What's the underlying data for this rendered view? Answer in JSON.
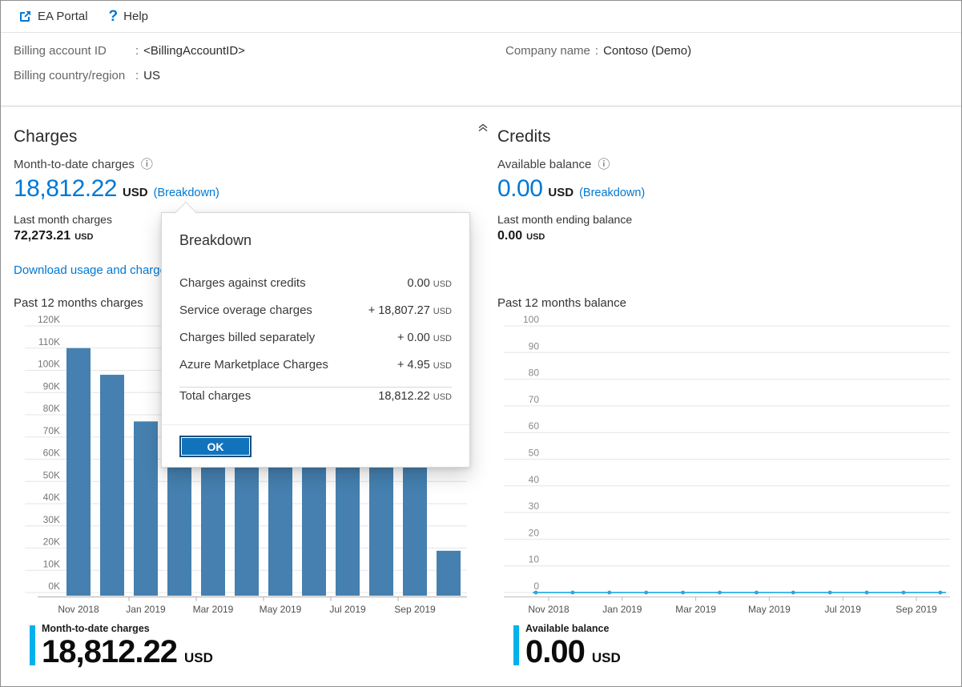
{
  "topbar": {
    "ea_portal_label": "EA Portal",
    "help_label": "Help"
  },
  "icons": {
    "info": "ⓘ",
    "help": "?"
  },
  "billing_info": {
    "separator": ":",
    "account_id_label": "Billing account ID",
    "account_id_value": "<BillingAccountID>",
    "country_label": "Billing country/region",
    "country_value": "US",
    "company_label": "Company name",
    "company_value": "Contoso (Demo)"
  },
  "charges": {
    "title": "Charges",
    "mtd_label": "Month-to-date charges",
    "mtd_value": "18,812.22",
    "currency": "USD",
    "breakdown_link": "(Breakdown)",
    "last_month_label": "Last month charges",
    "last_month_value": "72,273.21",
    "download_link": "Download usage and charges",
    "chart_title": "Past 12 months charges",
    "summary_label": "Month-to-date charges",
    "summary_value": "18,812.22"
  },
  "credits": {
    "title": "Credits",
    "balance_label": "Available balance",
    "balance_value": "0.00",
    "currency": "USD",
    "breakdown_link": "(Breakdown)",
    "last_month_label": "Last month ending balance",
    "last_month_value": "0.00",
    "chart_title": "Past 12 months balance",
    "summary_label": "Available balance",
    "summary_value": "0.00"
  },
  "dialog": {
    "title": "Breakdown",
    "rows": [
      {
        "label": "Charges against credits",
        "value": "0.00",
        "currency": "USD"
      },
      {
        "label": "Service overage charges",
        "value": "+ 18,807.27",
        "currency": "USD"
      },
      {
        "label": "Charges billed separately",
        "value": "+ 0.00",
        "currency": "USD"
      },
      {
        "label": "Azure Marketplace Charges",
        "value": "+ 4.95",
        "currency": "USD"
      }
    ],
    "total_label": "Total charges",
    "total_value": "18,812.22",
    "total_currency": "USD",
    "ok_label": "OK"
  },
  "chart_data": [
    {
      "name": "past-12-months-charges",
      "type": "bar",
      "title": "Past 12 months charges",
      "categories": [
        "Nov 2018",
        "Dec 2018",
        "Jan 2019",
        "Feb 2019",
        "Mar 2019",
        "Apr 2019",
        "May 2019",
        "Jun 2019",
        "Jul 2019",
        "Aug 2019",
        "Sep 2019",
        "Oct 2019"
      ],
      "values_k_usd": [
        110,
        98,
        77,
        70,
        70,
        70,
        70,
        70,
        70,
        70,
        70,
        18.8
      ],
      "note": "Tops of Feb 2019 – Sep 2019 bars are hidden behind the Breakdown dialog; visible portions reach at least ~58K",
      "x_tick_labels": [
        "Nov 2018",
        "Jan 2019",
        "Mar 2019",
        "May 2019",
        "Jul 2019",
        "Sep 2019"
      ],
      "y_tick_labels": [
        "120K",
        "110K",
        "100K",
        "90K",
        "80K",
        "70K",
        "60K",
        "50K",
        "40K",
        "30K",
        "20K",
        "10K",
        "0K"
      ],
      "ylim": [
        0,
        120
      ],
      "grid": true,
      "legend": false,
      "bar_color": "#4580b0"
    },
    {
      "name": "past-12-months-balance",
      "type": "line",
      "title": "Past 12 months balance",
      "categories": [
        "Nov 2018",
        "Dec 2018",
        "Jan 2019",
        "Feb 2019",
        "Mar 2019",
        "Apr 2019",
        "May 2019",
        "Jun 2019",
        "Jul 2019",
        "Aug 2019",
        "Sep 2019",
        "Oct 2019"
      ],
      "values": [
        0,
        0,
        0,
        0,
        0,
        0,
        0,
        0,
        0,
        0,
        0,
        0
      ],
      "x_tick_labels": [
        "Nov 2018",
        "Jan 2019",
        "Mar 2019",
        "May 2019",
        "Jul 2019",
        "Sep 2019"
      ],
      "y_tick_labels": [
        "100",
        "90",
        "80",
        "70",
        "60",
        "50",
        "40",
        "30",
        "20",
        "10",
        "0"
      ],
      "ylim": [
        0,
        100
      ],
      "grid": true,
      "legend": false,
      "line_color": "#45b8e8",
      "marker_color": "#2ba7da"
    }
  ],
  "colors": {
    "accent_blue": "#0078d4",
    "summary_accent_cyan": "#00b2ec",
    "bar_blue": "#4580b0",
    "line_light_blue": "#45b8e8"
  }
}
